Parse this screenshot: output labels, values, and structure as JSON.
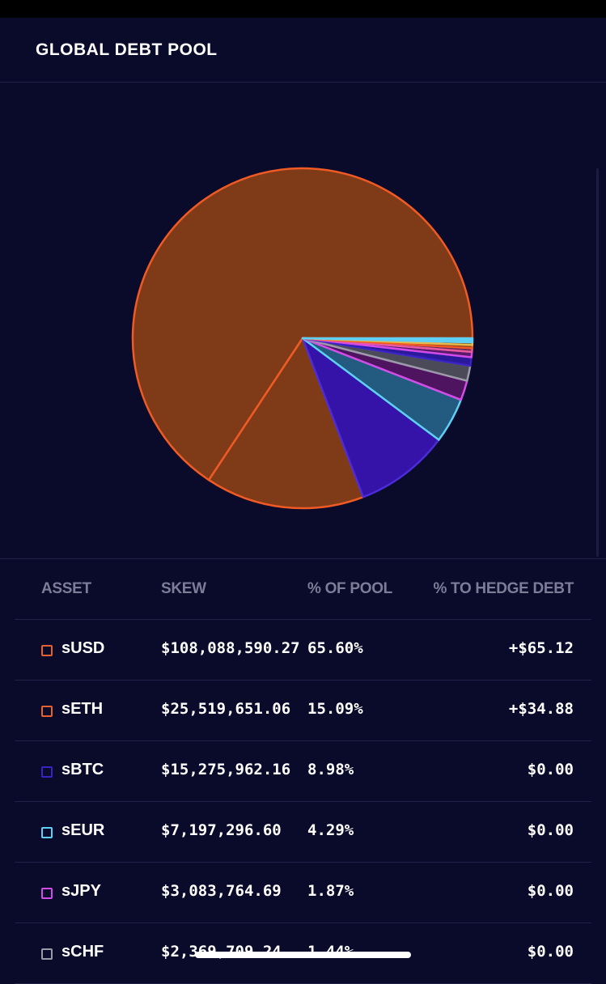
{
  "header": {
    "title": "GLOBAL DEBT POOL"
  },
  "table": {
    "headers": {
      "asset": "ASSET",
      "skew": "SKEW",
      "pool": "% OF POOL",
      "hedge": "% TO HEDGE DEBT"
    },
    "rows": [
      {
        "asset": "sUSD",
        "skew": "$108,088,590.27",
        "pool": "65.60%",
        "hedge": "+$65.12",
        "color": "#e8612c"
      },
      {
        "asset": "sETH",
        "skew": "$25,519,651.06",
        "pool": "15.09%",
        "hedge": "+$34.88",
        "color": "#e8612c"
      },
      {
        "asset": "sBTC",
        "skew": "$15,275,962.16",
        "pool": "8.98%",
        "hedge": "$0.00",
        "color": "#3b22c4"
      },
      {
        "asset": "sEUR",
        "skew": "$7,197,296.60",
        "pool": "4.29%",
        "hedge": "$0.00",
        "color": "#5fd0f5"
      },
      {
        "asset": "sJPY",
        "skew": "$3,083,764.69",
        "pool": "1.87%",
        "hedge": "$0.00",
        "color": "#d44ce8"
      },
      {
        "asset": "sCHF",
        "skew": "$2,369,709.24",
        "pool": "1.44%",
        "hedge": "$0.00",
        "color": "#9a9aa8"
      }
    ]
  },
  "chart_data": {
    "type": "pie",
    "title": "",
    "slices": [
      {
        "label": "sUSD",
        "value": 65.6,
        "fill": "#7f3a18",
        "stroke": "#f05a24"
      },
      {
        "label": "sETH",
        "value": 15.09,
        "fill": "#7f3a18",
        "stroke": "#f05a24"
      },
      {
        "label": "sBTC",
        "value": 8.98,
        "fill": "#3512a8",
        "stroke": "#4a2cd8"
      },
      {
        "label": "sEUR",
        "value": 4.29,
        "fill": "#235a80",
        "stroke": "#5fd0f5"
      },
      {
        "label": "sJPY",
        "value": 1.87,
        "fill": "#4e1460",
        "stroke": "#d44ce8"
      },
      {
        "label": "sCHF",
        "value": 1.44,
        "fill": "#4a4a58",
        "stroke": "#9a9aa8"
      },
      {
        "label": "",
        "value": 0.8,
        "fill": "#2a1a9a",
        "stroke": "#3b22c4"
      },
      {
        "label": "",
        "value": 0.5,
        "fill": "#5a1a6a",
        "stroke": "#d44ce8"
      },
      {
        "label": "",
        "value": 0.35,
        "fill": "#6a2a50",
        "stroke": "#e85aa0"
      },
      {
        "label": "",
        "value": 0.3,
        "fill": "#7f3a18",
        "stroke": "#f05a24"
      },
      {
        "label": "",
        "value": 0.25,
        "fill": "#6a5a2a",
        "stroke": "#e8b84a"
      },
      {
        "label": "",
        "value": 0.2,
        "fill": "#2a4a6a",
        "stroke": "#5fd0f5"
      },
      {
        "label": "",
        "value": 0.18,
        "fill": "#235a80",
        "stroke": "#5fd0f5"
      }
    ]
  }
}
